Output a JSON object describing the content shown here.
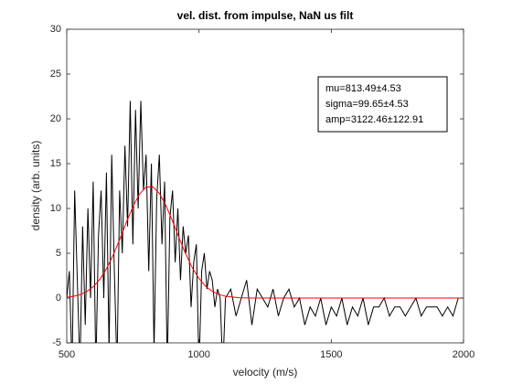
{
  "chart_data": {
    "type": "line",
    "title": "vel. dist. from impulse, NaN us filt",
    "xlabel": "velocity (m/s)",
    "ylabel": "density (arb. units)",
    "xlim": [
      500,
      2000
    ],
    "ylim": [
      -5,
      30
    ],
    "xticks": [
      500,
      1000,
      1500,
      2000
    ],
    "yticks": [
      -5,
      0,
      5,
      10,
      15,
      20,
      25,
      30
    ],
    "annotation": [
      "mu=813.49±4.53",
      "sigma=99.65±4.53",
      "amp=3122.46±122.91"
    ],
    "series": [
      {
        "color": "#000000",
        "x": [
          500,
          510,
          520,
          530,
          540,
          550,
          560,
          570,
          580,
          590,
          600,
          610,
          620,
          630,
          640,
          650,
          660,
          670,
          680,
          690,
          700,
          710,
          720,
          730,
          740,
          750,
          760,
          770,
          780,
          790,
          800,
          810,
          820,
          830,
          840,
          850,
          860,
          870,
          880,
          890,
          900,
          910,
          920,
          930,
          940,
          950,
          960,
          970,
          980,
          990,
          1000,
          1010,
          1020,
          1030,
          1040,
          1050,
          1060,
          1070,
          1080,
          1090,
          1100,
          1120,
          1140,
          1160,
          1180,
          1200,
          1220,
          1240,
          1260,
          1280,
          1300,
          1320,
          1340,
          1360,
          1380,
          1400,
          1420,
          1440,
          1460,
          1480,
          1500,
          1520,
          1540,
          1560,
          1580,
          1600,
          1620,
          1640,
          1660,
          1680,
          1700,
          1720,
          1740,
          1760,
          1780,
          1800,
          1820,
          1840,
          1860,
          1880,
          1900,
          1920,
          1940,
          1960,
          1980,
          2000
        ],
        "values": [
          0,
          3,
          -8,
          12,
          2,
          -8,
          8,
          -3,
          10,
          0,
          13,
          -8,
          7,
          12,
          0,
          14,
          -6,
          16,
          3,
          -8,
          12,
          5,
          17,
          8,
          22,
          6,
          21,
          10,
          22,
          12,
          16,
          3,
          15,
          -6,
          11,
          16,
          6,
          13,
          -8,
          9,
          12,
          4,
          10,
          2,
          8,
          5,
          7,
          -1,
          4,
          6,
          -8,
          3,
          5,
          1,
          3,
          2,
          -1,
          1,
          0,
          -8,
          0,
          1,
          -2,
          0,
          2,
          -3,
          1,
          0,
          -1,
          1,
          -2,
          0,
          1,
          -1,
          0,
          -3,
          -1,
          -2,
          0,
          -3,
          -1,
          -2,
          0,
          -3,
          -1,
          -2,
          0,
          -3,
          -1,
          -1,
          0,
          -2,
          -1,
          -1,
          -2,
          -1,
          0,
          -2,
          -1,
          -1,
          -1,
          -2,
          -1,
          -2,
          0,
          0
        ]
      },
      {
        "color": "#ff0000",
        "x": [
          500,
          525,
          550,
          575,
          600,
          625,
          650,
          675,
          700,
          725,
          750,
          775,
          800,
          825,
          850,
          875,
          900,
          925,
          950,
          975,
          1000,
          1025,
          1050,
          1075,
          1100,
          1150,
          1200,
          2000
        ],
        "values": [
          0.09,
          0.19,
          0.38,
          0.71,
          1.26,
          2.09,
          3.25,
          4.76,
          6.53,
          8.43,
          10.2,
          11.6,
          12.39,
          12.42,
          11.69,
          10.33,
          8.58,
          6.69,
          4.89,
          3.36,
          2.17,
          1.31,
          0.75,
          0.4,
          0.2,
          0.04,
          0,
          0
        ]
      }
    ]
  }
}
